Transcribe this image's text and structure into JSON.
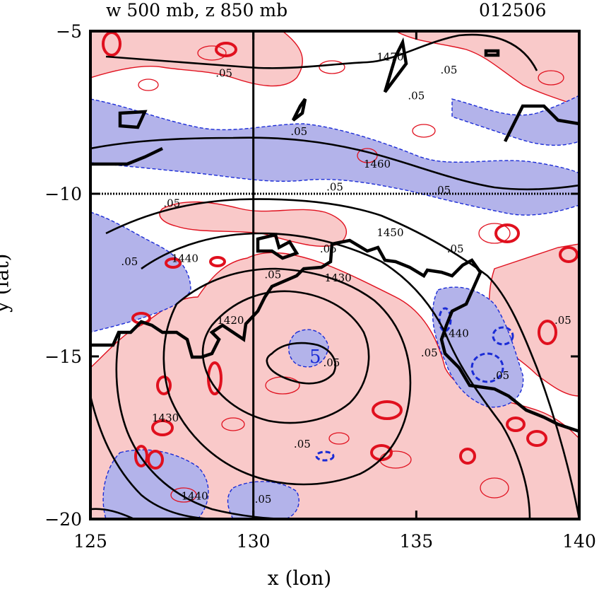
{
  "title_left": "w 500 mb, z 850 mb",
  "title_right": "012506",
  "chart_data": {
    "type": "contour",
    "xlabel": "x (lon)",
    "ylabel": "y (lat)",
    "xlim": [
      125,
      140
    ],
    "ylim": [
      -20,
      -5
    ],
    "xticks": [
      125,
      130,
      135,
      140
    ],
    "yticks": [
      -5,
      -10,
      -15,
      -20
    ],
    "reference_lines": {
      "x": 130,
      "y": -10
    },
    "colors": {
      "positive_fill": "#f9c9c9",
      "negative_fill": "#b3b3ea",
      "positive_contour": "#e0101e",
      "negative_contour": "#1a2bd6",
      "height_contour": "#000000"
    },
    "series": [
      {
        "name": "geopotential height 850 mb",
        "levels": [
          1420,
          1430,
          1440,
          1450,
          1460,
          1470
        ]
      },
      {
        "name": "vertical velocity 500 mb",
        "levels": [
          0.05,
          -0.05
        ]
      }
    ],
    "annotations": [
      {
        "text": "1470",
        "x": 134.2,
        "y": -5.9
      },
      {
        "text": "1460",
        "x": 133.8,
        "y": -9.2
      },
      {
        "text": "1450",
        "x": 134.2,
        "y": -11.3
      },
      {
        "text": "1440",
        "x": 127.9,
        "y": -12.1
      },
      {
        "text": "1430",
        "x": 132.6,
        "y": -12.7
      },
      {
        "text": "1420",
        "x": 129.3,
        "y": -14.0
      },
      {
        "text": "1430",
        "x": 127.3,
        "y": -17.0
      },
      {
        "text": "1440",
        "x": 128.2,
        "y": -19.4
      },
      {
        "text": "1440",
        "x": 136.2,
        "y": -14.4
      },
      {
        "text": ".05",
        "x": 129.1,
        "y": -6.4
      },
      {
        "text": ".05",
        "x": 131.4,
        "y": -8.2
      },
      {
        "text": ".05",
        "x": 135.0,
        "y": -7.1
      },
      {
        "text": ".05",
        "x": 127.5,
        "y": -10.4
      },
      {
        "text": ".05",
        "x": 126.2,
        "y": -12.2
      },
      {
        "text": ".05",
        "x": 130.6,
        "y": -12.6
      },
      {
        "text": ".05",
        "x": 132.5,
        "y": -9.9
      },
      {
        "text": ".05",
        "x": 132.3,
        "y": -11.8
      },
      {
        "text": ".05",
        "x": 135.8,
        "y": -10.0
      },
      {
        "text": ".05",
        "x": 136.2,
        "y": -11.8
      },
      {
        "text": ".05",
        "x": 136.0,
        "y": -6.3
      },
      {
        "text": ".05",
        "x": 132.4,
        "y": -15.3
      },
      {
        "text": ".05",
        "x": 135.4,
        "y": -15.0
      },
      {
        "text": ".05",
        "x": 131.5,
        "y": -17.8
      },
      {
        "text": ".05",
        "x": 130.3,
        "y": -19.5
      },
      {
        "text": ".05",
        "x": 139.5,
        "y": -14.0
      },
      {
        "text": ".05",
        "x": 137.6,
        "y": -15.7
      }
    ],
    "blue_label": {
      "text": "5",
      "x": 131.9,
      "y": -15.2
    }
  }
}
